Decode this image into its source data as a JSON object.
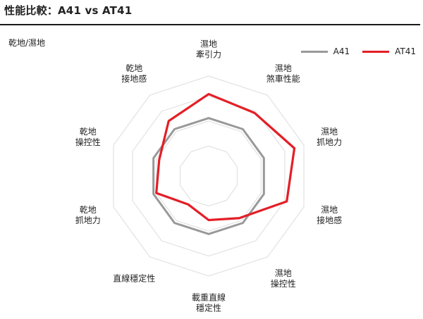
{
  "header": {
    "title": "性能比較：A41 vs AT41"
  },
  "panel": {
    "subtitle": "乾地/濕地"
  },
  "legend": [
    {
      "label": "A41",
      "color": "#999999"
    },
    {
      "label": "AT41",
      "color": "#e41e26"
    }
  ],
  "chart_data": {
    "type": "radar",
    "axes": [
      "濕地\n牽引力",
      "濕地\n煞車性能",
      "濕地\n抓地力",
      "濕地\n接地感",
      "濕地\n操控性",
      "載重直線\n穩定性",
      "直線穩定性",
      "乾地\n抓地力",
      "乾地\n操控性",
      "乾地\n接地感"
    ],
    "rlim": [
      0,
      1
    ],
    "grid_levels": [
      0.3,
      0.55,
      0.8,
      1.0
    ],
    "grid": true,
    "legend_position": "top-right",
    "series": [
      {
        "name": "A41",
        "color": "#999999",
        "values": [
          0.58,
          0.58,
          0.58,
          0.58,
          0.58,
          0.58,
          0.58,
          0.58,
          0.58,
          0.58
        ]
      },
      {
        "name": "AT41",
        "color": "#e41e26",
        "values": [
          0.82,
          0.78,
          0.9,
          0.82,
          0.52,
          0.44,
          0.35,
          0.55,
          0.52,
          0.68
        ]
      }
    ]
  }
}
